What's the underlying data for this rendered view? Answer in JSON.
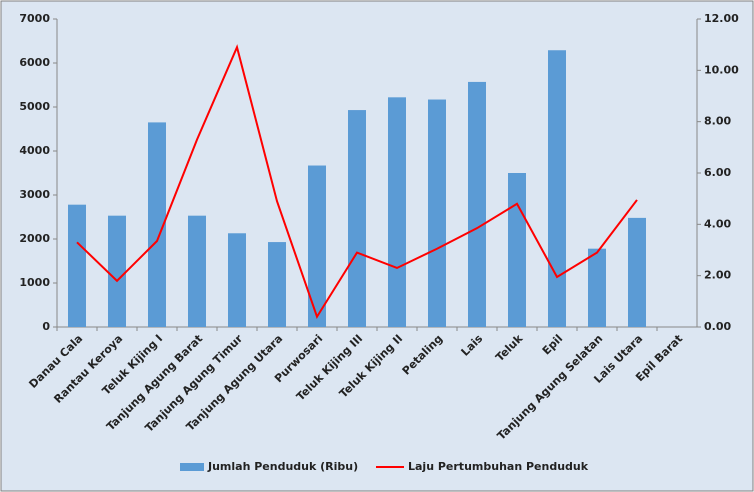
{
  "chart_data": {
    "type": "bar_line",
    "categories": [
      "Danau Cala",
      "Rantau Keroya",
      "Teluk Kijing I",
      "Tanjung Agung Barat",
      "Tanjung Agung Timur",
      "Tanjung Agung Utara",
      "Purwosari",
      "Teluk Kijing III",
      "Teluk Kijing II",
      "Petaling",
      "Lais",
      "Teluk",
      "Epil",
      "Tanjung Agung Selatan",
      "Lais Utara",
      "Epil Barat"
    ],
    "series": [
      {
        "name": "Jumlah Penduduk (Ribu)",
        "type": "bar",
        "color": "#5b9bd5",
        "values": [
          2780,
          2530,
          4650,
          2530,
          2130,
          1930,
          3670,
          4930,
          5220,
          5170,
          5570,
          3500,
          6290,
          1780,
          2480,
          null
        ]
      },
      {
        "name": "Laju Pertumbuhan Penduduk",
        "type": "line",
        "axis": "y2",
        "color": "#ff0000",
        "values": [
          3.3,
          1.8,
          3.35,
          7.3,
          10.9,
          4.9,
          0.4,
          2.9,
          2.3,
          3.05,
          3.85,
          4.8,
          1.95,
          2.9,
          4.95,
          null
        ]
      }
    ],
    "ylim": [
      0,
      7000
    ],
    "yticks": [
      0,
      1000,
      2000,
      3000,
      4000,
      5000,
      6000,
      7000
    ],
    "y2lim": [
      0,
      12
    ],
    "y2ticks": [
      {
        "value": 0,
        "label": "0.00"
      },
      {
        "value": 2,
        "label": "2.00"
      },
      {
        "value": 4,
        "label": "4.00"
      },
      {
        "value": 6,
        "label": "6.00"
      },
      {
        "value": 8,
        "label": "8.00"
      },
      {
        "value": 10,
        "label": "10.00"
      },
      {
        "value": 12,
        "label": "12.00"
      }
    ],
    "legend": "bottom"
  }
}
